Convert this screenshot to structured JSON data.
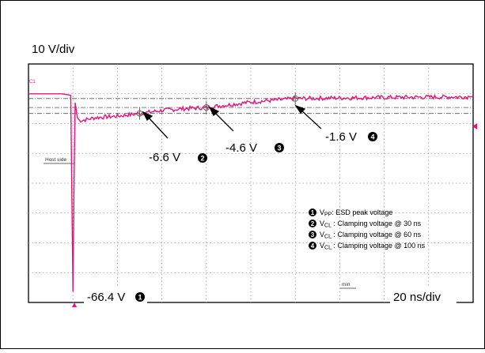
{
  "scope": {
    "volts_per_div": "10 V/div",
    "time_per_div": "20 ns/div",
    "host_side_label": "Host side",
    "min_label": "min",
    "ch1_label": "C1"
  },
  "annotations": [
    {
      "text": "-66.4 V",
      "marker": "1"
    },
    {
      "text": "-6.6 V",
      "marker": "2"
    },
    {
      "text": "-4.6 V",
      "marker": "3"
    },
    {
      "text": "-1.6 V",
      "marker": "4"
    }
  ],
  "legend": [
    {
      "marker": "1",
      "prefix": "V",
      "sub": "PP",
      "text": ": ESD peak voltage"
    },
    {
      "marker": "2",
      "prefix": "V",
      "sub": "CL",
      "text": " : Clamping voltage @ 30 ns"
    },
    {
      "marker": "3",
      "prefix": "V",
      "sub": "CL",
      "text": " : Clamping voltage @ 60 ns"
    },
    {
      "marker": "4",
      "prefix": "V",
      "sub": "CL",
      "text": " : Clamping voltage @ 100 ns"
    }
  ],
  "colors": {
    "trace": "#e8147a",
    "grid": "#9a9a9a",
    "border": "#000000"
  },
  "chart_data": {
    "type": "line",
    "title": "",
    "xlabel": "20 ns/div",
    "ylabel": "10 V/div",
    "x_units": "ns",
    "y_units": "V",
    "xlim": [
      -20,
      180
    ],
    "ylim": [
      -70,
      10
    ],
    "grid": true,
    "x": [
      -20,
      -5,
      -1,
      0,
      0.5,
      1,
      2,
      3,
      5,
      10,
      20,
      30,
      40,
      50,
      60,
      80,
      100,
      130,
      160,
      180
    ],
    "y": [
      0,
      0,
      -0.5,
      -66.4,
      -30,
      -3,
      -8,
      -9,
      -8.8,
      -8,
      -7.5,
      -6.6,
      -5.6,
      -5,
      -4.6,
      -2.8,
      -1.6,
      -1.3,
      -1.1,
      -1
    ]
  }
}
